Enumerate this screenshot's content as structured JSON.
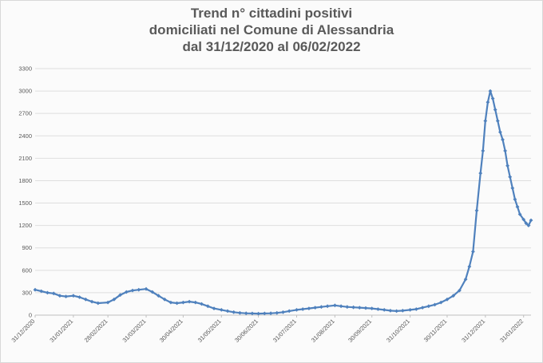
{
  "chart_data": {
    "type": "line",
    "title_lines": [
      "Trend n° cittadini positivi",
      "domiciliati nel Comune di Alessandria",
      "dal 31/12/2020 al 06/02/2022"
    ],
    "xlabel": "",
    "ylabel": "",
    "ylim": [
      0,
      3300
    ],
    "y_ticks": [
      "0",
      "300",
      "600",
      "900",
      "1200",
      "1500",
      "1800",
      "2100",
      "2400",
      "2700",
      "3000",
      "3300"
    ],
    "x_ticks": [
      "31/12/2020",
      "31/01/2021",
      "28/02/2021",
      "31/03/2021",
      "30/04/2021",
      "31/05/2021",
      "30/06/2021",
      "31/07/2021",
      "31/08/2021",
      "30/09/2021",
      "31/10/2021",
      "30/11/2021",
      "31/12/2021",
      "31/01/2022"
    ],
    "grid": "horizontal",
    "legend": "none",
    "line_color": "#4f81bd",
    "x_dates": [
      "31/12/2020",
      "05/01/2021",
      "10/01/2021",
      "15/01/2021",
      "20/01/2021",
      "25/01/2021",
      "31/01/2021",
      "05/02/2021",
      "10/02/2021",
      "15/02/2021",
      "20/02/2021",
      "28/02/2021",
      "05/03/2021",
      "10/03/2021",
      "15/03/2021",
      "20/03/2021",
      "25/03/2021",
      "31/03/2021",
      "05/04/2021",
      "10/04/2021",
      "15/04/2021",
      "20/04/2021",
      "25/04/2021",
      "30/04/2021",
      "05/05/2021",
      "10/05/2021",
      "15/05/2021",
      "20/05/2021",
      "25/05/2021",
      "31/05/2021",
      "05/06/2021",
      "10/06/2021",
      "15/06/2021",
      "20/06/2021",
      "25/06/2021",
      "30/06/2021",
      "05/07/2021",
      "10/07/2021",
      "15/07/2021",
      "20/07/2021",
      "25/07/2021",
      "31/07/2021",
      "05/08/2021",
      "10/08/2021",
      "15/08/2021",
      "20/08/2021",
      "25/08/2021",
      "31/08/2021",
      "05/09/2021",
      "10/09/2021",
      "15/09/2021",
      "20/09/2021",
      "25/09/2021",
      "30/09/2021",
      "05/10/2021",
      "10/10/2021",
      "15/10/2021",
      "20/10/2021",
      "25/10/2021",
      "31/10/2021",
      "05/11/2021",
      "10/11/2021",
      "15/11/2021",
      "20/11/2021",
      "25/11/2021",
      "30/11/2021",
      "05/12/2021",
      "10/12/2021",
      "15/12/2021",
      "18/12/2021",
      "21/12/2021",
      "24/12/2021",
      "27/12/2021",
      "29/12/2021",
      "31/12/2021",
      "02/01/2022",
      "04/01/2022",
      "06/01/2022",
      "08/01/2022",
      "10/01/2022",
      "12/01/2022",
      "14/01/2022",
      "16/01/2022",
      "18/01/2022",
      "20/01/2022",
      "22/01/2022",
      "24/01/2022",
      "26/01/2022",
      "28/01/2022",
      "31/01/2022",
      "02/02/2022",
      "04/02/2022",
      "06/02/2022"
    ],
    "values": [
      340,
      320,
      300,
      290,
      260,
      250,
      260,
      240,
      210,
      180,
      160,
      170,
      210,
      270,
      310,
      330,
      340,
      350,
      310,
      260,
      210,
      170,
      160,
      170,
      180,
      170,
      150,
      120,
      90,
      70,
      55,
      40,
      30,
      25,
      22,
      20,
      22,
      25,
      30,
      40,
      55,
      70,
      80,
      90,
      100,
      110,
      120,
      130,
      120,
      110,
      105,
      100,
      95,
      90,
      80,
      70,
      60,
      55,
      60,
      70,
      80,
      100,
      120,
      140,
      170,
      210,
      260,
      330,
      480,
      650,
      850,
      1400,
      1900,
      2200,
      2600,
      2850,
      3000,
      2900,
      2750,
      2600,
      2450,
      2350,
      2200,
      2000,
      1850,
      1700,
      1550,
      1450,
      1350,
      1280,
      1230,
      1200,
      1270
    ]
  }
}
